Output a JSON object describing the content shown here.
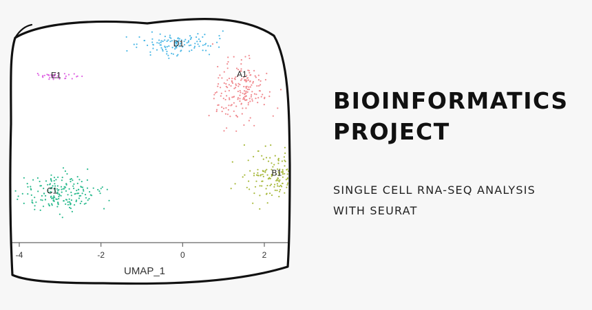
{
  "header": {
    "title_line1": "BIOINFORMATICS",
    "title_line2": "PROJECT",
    "subtitle": "SINGLE CELL RNA-SEQ ANALYSIS WITH SEURAT"
  },
  "colors": {
    "A1": "#f08a8f",
    "B1": "#a8b93d",
    "C1": "#2dbb8f",
    "D1": "#4cb8e6",
    "E1": "#df66e3"
  },
  "chart_data": {
    "type": "scatter",
    "title": "",
    "xlabel": "UMAP_1",
    "ylabel": "",
    "xlim": [
      -4.1,
      2.6
    ],
    "ylim": [
      -6.2,
      4.4
    ],
    "xticks": [
      -4,
      -2,
      0,
      2
    ],
    "xtick_labels": [
      "-4",
      "-2",
      "0",
      "2"
    ],
    "clusters": [
      {
        "name": "A1",
        "label": "A1",
        "center": [
          1.4,
          1.0
        ],
        "spread": [
          0.7,
          1.3
        ],
        "n": 190
      },
      {
        "name": "B1",
        "label": "B1",
        "center": [
          2.3,
          -3.0
        ],
        "spread": [
          0.8,
          1.1
        ],
        "n": 170
      },
      {
        "name": "C1",
        "label": "C1",
        "center": [
          -3.0,
          -3.9
        ],
        "spread": [
          0.8,
          0.8
        ],
        "n": 190
      },
      {
        "name": "D1",
        "label": "D1",
        "center": [
          -0.1,
          3.2
        ],
        "spread": [
          0.9,
          0.5
        ],
        "n": 120
      },
      {
        "name": "E1",
        "label": "E1",
        "center": [
          -3.1,
          1.7
        ],
        "spread": [
          0.45,
          0.15
        ],
        "n": 35
      }
    ],
    "label_positions": {
      "A1": [
        1.45,
        1.65
      ],
      "B1": [
        2.3,
        -3.05
      ],
      "C1": [
        -3.2,
        -3.9
      ],
      "D1": [
        -0.1,
        3.1
      ],
      "E1": [
        -3.1,
        1.6
      ]
    }
  }
}
